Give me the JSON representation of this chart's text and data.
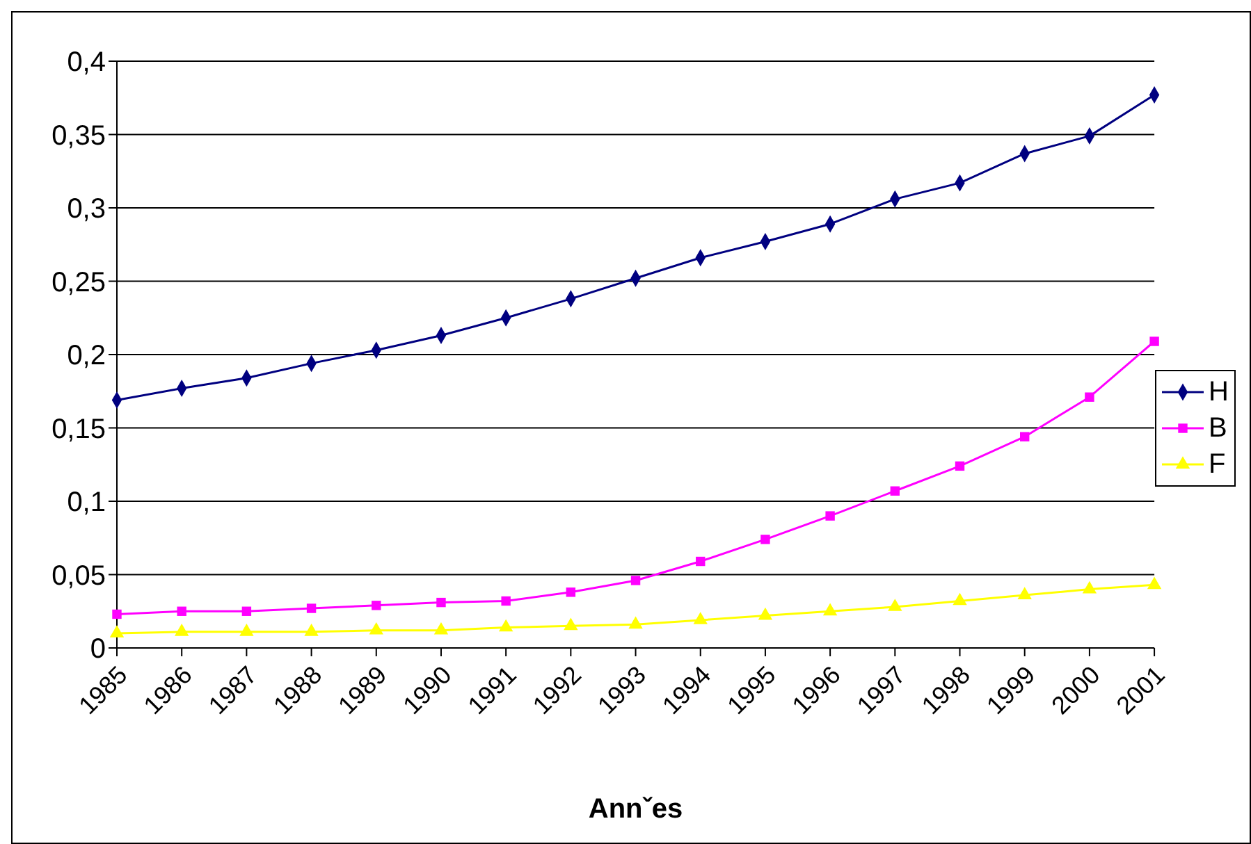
{
  "chart_data": {
    "type": "line",
    "xlabel": "Annˇes",
    "categories": [
      "1985",
      "1986",
      "1987",
      "1988",
      "1989",
      "1990",
      "1991",
      "1992",
      "1993",
      "1994",
      "1995",
      "1996",
      "1997",
      "1998",
      "1999",
      "2000",
      "2001"
    ],
    "series": [
      {
        "name": "H",
        "color": "#000080",
        "marker": "diamond",
        "values": [
          0.169,
          0.177,
          0.184,
          0.194,
          0.203,
          0.213,
          0.225,
          0.238,
          0.252,
          0.266,
          0.277,
          0.289,
          0.306,
          0.317,
          0.337,
          0.349,
          0.377
        ]
      },
      {
        "name": "B",
        "color": "#ff00ff",
        "marker": "square",
        "values": [
          0.023,
          0.025,
          0.025,
          0.027,
          0.029,
          0.031,
          0.032,
          0.038,
          0.046,
          0.059,
          0.074,
          0.09,
          0.107,
          0.124,
          0.144,
          0.171,
          0.209
        ]
      },
      {
        "name": "F",
        "color": "#ffff00",
        "marker": "triangle",
        "values": [
          0.01,
          0.011,
          0.011,
          0.011,
          0.012,
          0.012,
          0.014,
          0.015,
          0.016,
          0.019,
          0.022,
          0.025,
          0.028,
          0.032,
          0.036,
          0.04,
          0.043
        ]
      }
    ],
    "ylim": [
      0,
      0.4
    ],
    "yticks": [
      {
        "value": 0,
        "label": "0"
      },
      {
        "value": 0.05,
        "label": "0,05"
      },
      {
        "value": 0.1,
        "label": "0,1"
      },
      {
        "value": 0.15,
        "label": "0,15"
      },
      {
        "value": 0.2,
        "label": "0,2"
      },
      {
        "value": 0.25,
        "label": "0,25"
      },
      {
        "value": 0.3,
        "label": "0,3"
      },
      {
        "value": 0.35,
        "label": "0,35"
      },
      {
        "value": 0.4,
        "label": "0,4"
      }
    ],
    "grid": "y",
    "legend": "right"
  }
}
